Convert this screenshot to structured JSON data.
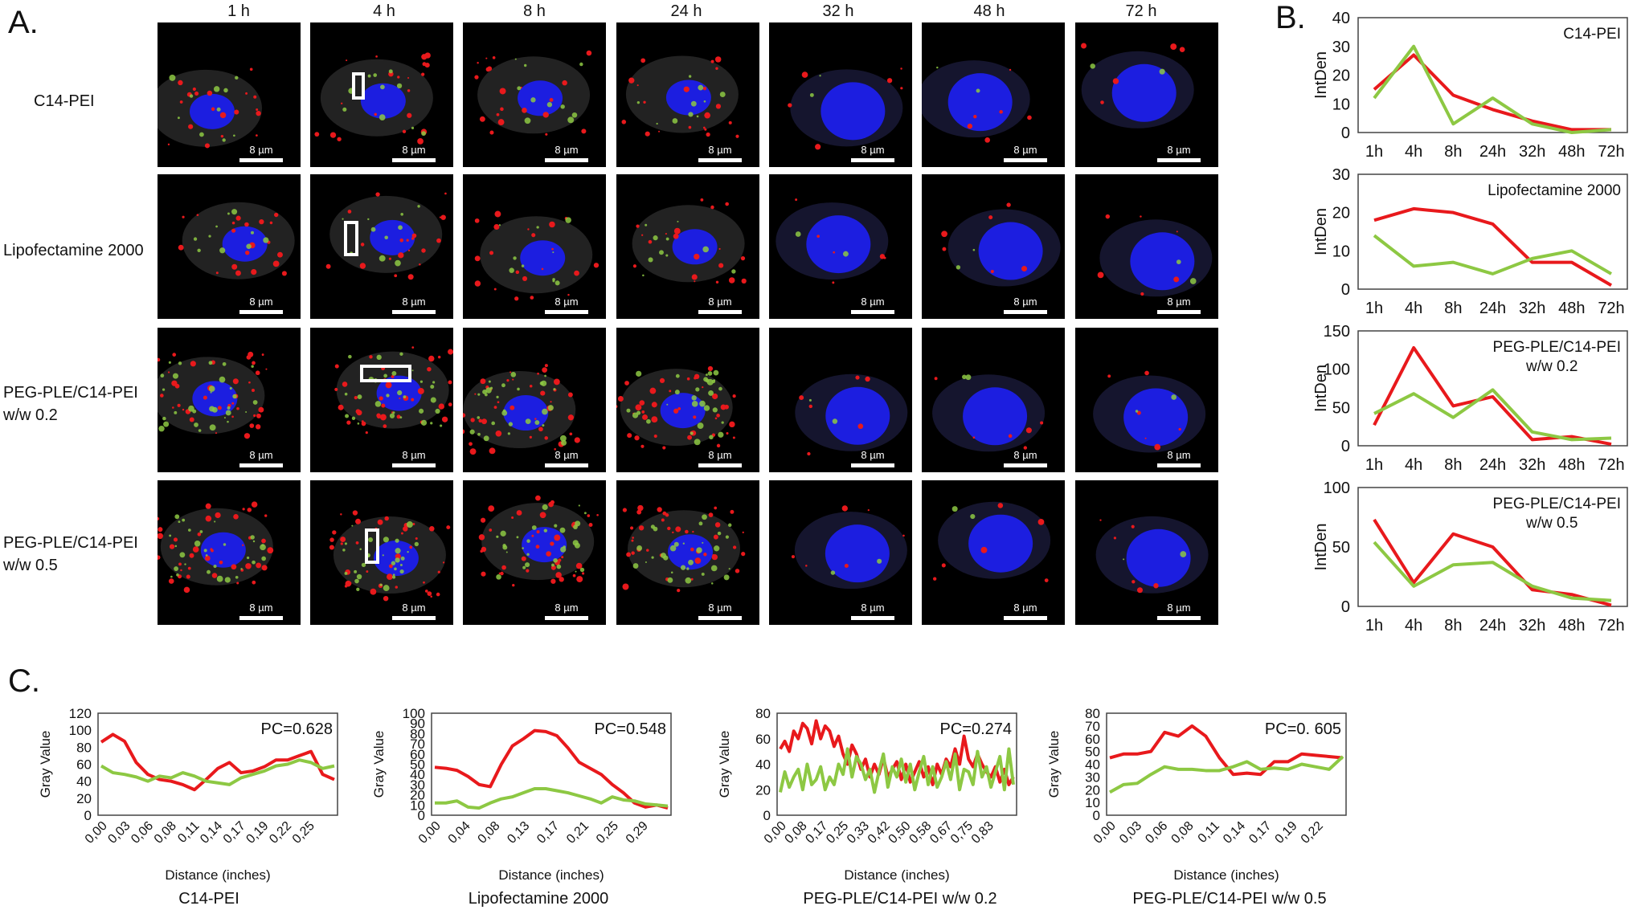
{
  "panel_labels": {
    "a": "A.",
    "b": "B.",
    "c": "C."
  },
  "timepoints": [
    "1 h",
    "4 h",
    "8 h",
    "24 h",
    "32 h",
    "48 h",
    "72 h"
  ],
  "row_labels": [
    [
      "C14-PEI"
    ],
    [
      "Lipofectamine 2000"
    ],
    [
      "PEG-PLE/C14-PEI",
      "w/w 0.2"
    ],
    [
      "PEG-PLE/C14-PEI",
      "w/w 0.5"
    ]
  ],
  "scale_bar_label": "8 µm",
  "colors": {
    "red": "#e8191c",
    "green": "#8dc843",
    "nucleus": "#1c1ee0"
  },
  "chart_data": [
    {
      "type": "line",
      "panel": "B",
      "title": "C14-PEI",
      "categories": [
        "1h",
        "4h",
        "8h",
        "24h",
        "32h",
        "48h",
        "72h"
      ],
      "ylabel": "IntDen",
      "ylim": [
        0,
        40
      ],
      "yticks": [
        0,
        10,
        20,
        30,
        40
      ],
      "series": [
        {
          "color": "red",
          "values": [
            15,
            27,
            13,
            8,
            4,
            1,
            1
          ]
        },
        {
          "color": "green",
          "values": [
            12,
            30,
            3,
            12,
            3,
            0,
            1
          ]
        }
      ]
    },
    {
      "type": "line",
      "panel": "B",
      "title": "Lipofectamine 2000",
      "categories": [
        "1h",
        "4h",
        "8h",
        "24h",
        "32h",
        "48h",
        "72h"
      ],
      "ylabel": "IntDen",
      "ylim": [
        0,
        30
      ],
      "yticks": [
        0,
        10,
        20,
        30
      ],
      "series": [
        {
          "color": "red",
          "values": [
            18,
            21,
            20,
            17,
            7,
            7,
            1
          ]
        },
        {
          "color": "green",
          "values": [
            14,
            6,
            7,
            4,
            8,
            10,
            4
          ]
        }
      ]
    },
    {
      "type": "line",
      "panel": "B",
      "title": "PEG-PLE/C14-PEI",
      "subtitle": "w/w 0.2",
      "categories": [
        "1h",
        "4h",
        "8h",
        "24h",
        "32h",
        "48h",
        "72h"
      ],
      "ylabel": "IntDen",
      "ylim": [
        0,
        150
      ],
      "yticks": [
        0,
        50,
        100,
        150
      ],
      "series": [
        {
          "color": "red",
          "values": [
            27,
            128,
            52,
            64,
            8,
            12,
            2
          ]
        },
        {
          "color": "green",
          "values": [
            42,
            68,
            37,
            73,
            18,
            8,
            10
          ]
        }
      ]
    },
    {
      "type": "line",
      "panel": "B",
      "title": "PEG-PLE/C14-PEI",
      "subtitle": "w/w 0.5",
      "categories": [
        "1h",
        "4h",
        "8h",
        "24h",
        "32h",
        "48h",
        "72h"
      ],
      "ylabel": "IntDen",
      "ylim": [
        0,
        100
      ],
      "yticks": [
        0,
        50,
        100
      ],
      "series": [
        {
          "color": "red",
          "values": [
            73,
            20,
            61,
            50,
            14,
            10,
            1
          ]
        },
        {
          "color": "green",
          "values": [
            54,
            17,
            35,
            37,
            17,
            7,
            5
          ]
        }
      ]
    },
    {
      "type": "line",
      "panel": "C",
      "caption": "C14-PEI",
      "annotation": "PC=0.628",
      "xlabel": "Distance (inches)",
      "ylabel": "Gray Value",
      "ylim": [
        0,
        120
      ],
      "yticks": [
        0,
        20,
        40,
        60,
        80,
        100,
        120
      ],
      "xticks": [
        "0,00",
        "0,03",
        "0,06",
        "0,08",
        "0,11",
        "0,14",
        "0,17",
        "0,19",
        "0,22",
        "0,25"
      ],
      "series": [
        {
          "color": "red",
          "values": [
            86,
            95,
            87,
            62,
            48,
            42,
            40,
            36,
            30,
            42,
            55,
            62,
            50,
            52,
            57,
            65,
            65,
            70,
            75,
            48,
            42
          ]
        },
        {
          "color": "green",
          "values": [
            58,
            50,
            48,
            45,
            40,
            46,
            44,
            50,
            46,
            40,
            38,
            36,
            44,
            48,
            52,
            58,
            60,
            65,
            62,
            55,
            58
          ]
        }
      ]
    },
    {
      "type": "line",
      "panel": "C",
      "caption": "Lipofectamine 2000",
      "annotation": "PC=0.548",
      "xlabel": "Distance (inches)",
      "ylabel": "Gray Value",
      "ylim": [
        0,
        100
      ],
      "yticks": [
        0,
        10,
        20,
        30,
        40,
        50,
        60,
        70,
        80,
        90,
        100
      ],
      "xticks": [
        "0,00",
        "0,04",
        "0,08",
        "0,13",
        "0,17",
        "0,21",
        "0,25",
        "0,29"
      ],
      "series": [
        {
          "color": "red",
          "values": [
            47,
            46,
            44,
            38,
            30,
            28,
            50,
            68,
            75,
            83,
            82,
            78,
            66,
            52,
            46,
            40,
            30,
            22,
            12,
            8,
            10,
            7
          ]
        },
        {
          "color": "green",
          "values": [
            12,
            12,
            14,
            8,
            7,
            12,
            16,
            18,
            22,
            26,
            26,
            24,
            22,
            19,
            16,
            12,
            18,
            15,
            14,
            11,
            10,
            9
          ]
        }
      ]
    },
    {
      "type": "line",
      "panel": "C",
      "caption": "PEG-PLE/C14-PEI w/w 0.2",
      "annotation": "PC=0.274",
      "xlabel": "Distance (inches)",
      "ylabel": "Gray Value",
      "ylim": [
        0,
        80
      ],
      "yticks": [
        0,
        20,
        40,
        60,
        80
      ],
      "xticks": [
        "0,00",
        "0,08",
        "0,17",
        "0,25",
        "0,33",
        "0,42",
        "0,50",
        "0,58",
        "0,67",
        "0,75",
        "0,83"
      ],
      "series": [
        {
          "color": "red",
          "values": [
            52,
            58,
            50,
            66,
            60,
            72,
            68,
            56,
            74,
            60,
            70,
            66,
            54,
            62,
            48,
            40,
            55,
            48,
            36,
            44,
            30,
            40,
            32,
            45,
            30,
            36,
            42,
            28,
            40,
            26,
            34,
            42,
            30,
            38,
            24,
            40,
            32,
            44,
            38,
            52,
            40,
            62,
            44,
            38,
            48,
            40,
            34,
            30,
            38,
            26,
            36,
            24,
            30
          ]
        },
        {
          "color": "green",
          "values": [
            18,
            34,
            22,
            30,
            36,
            20,
            40,
            24,
            28,
            38,
            20,
            30,
            24,
            40,
            32,
            52,
            30,
            46,
            40,
            28,
            36,
            18,
            34,
            48,
            22,
            38,
            30,
            44,
            26,
            40,
            20,
            34,
            46,
            24,
            38,
            22,
            30,
            42,
            28,
            48,
            20,
            36,
            34,
            24,
            50,
            30,
            38,
            22,
            34,
            46,
            20,
            52,
            24
          ]
        }
      ]
    },
    {
      "type": "line",
      "panel": "C",
      "caption": "PEG-PLE/C14-PEI w/w 0.5",
      "annotation": "PC=0. 605",
      "xlabel": "Distance (inches)",
      "ylabel": "Gray Value",
      "ylim": [
        0,
        80
      ],
      "yticks": [
        0,
        10,
        20,
        30,
        40,
        50,
        60,
        70,
        80
      ],
      "xticks": [
        "0,00",
        "0,03",
        "0,06",
        "0,08",
        "0,11",
        "0,14",
        "0,17",
        "0,19",
        "0,22"
      ],
      "series": [
        {
          "color": "red",
          "values": [
            45,
            48,
            48,
            50,
            65,
            62,
            70,
            62,
            45,
            32,
            33,
            32,
            42,
            42,
            48,
            47,
            46,
            45
          ]
        },
        {
          "color": "green",
          "values": [
            18,
            24,
            25,
            32,
            38,
            36,
            36,
            35,
            35,
            38,
            42,
            36,
            37,
            36,
            40,
            38,
            36,
            46
          ]
        }
      ]
    }
  ]
}
